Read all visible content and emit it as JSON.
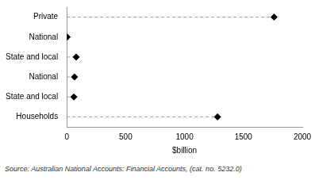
{
  "chart_data": {
    "type": "dot",
    "categories": [
      "Private",
      "National",
      "State and local",
      "National",
      "State and local",
      "Households"
    ],
    "values": [
      1760,
      3,
      80,
      65,
      60,
      1280
    ],
    "color": "#000000",
    "marker": "diamond",
    "line_style": "dashed",
    "orientation": "horizontal",
    "x_label": "$billion",
    "xlim": [
      0,
      2000
    ],
    "xticks": [
      0,
      500,
      1000,
      1500,
      2000
    ],
    "grid": false,
    "annotations": [
      "Source: Australian National Accounts: Financial Accounts, (cat. no. 5232.0)"
    ]
  }
}
